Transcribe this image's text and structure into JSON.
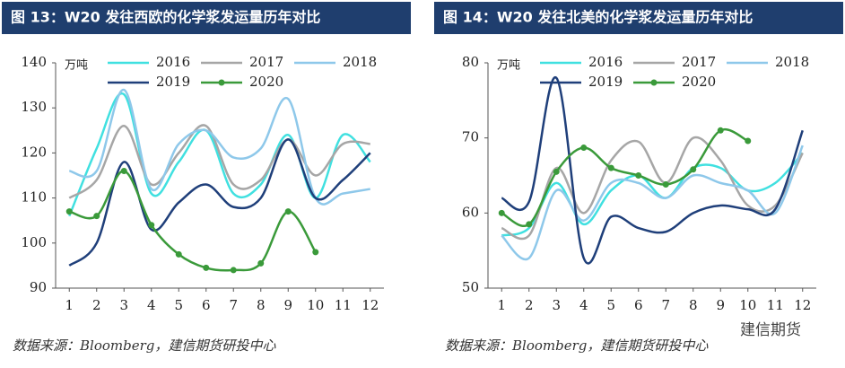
{
  "chart_data": [
    {
      "type": "line",
      "title": "图 13：W20 发往西欧的化学浆发运量历年对比",
      "y_label": "万吨",
      "categories": [
        "1",
        "2",
        "3",
        "4",
        "5",
        "6",
        "7",
        "8",
        "9",
        "10",
        "11",
        "12"
      ],
      "series": [
        {
          "name": "2016",
          "color": "#40e0e0",
          "values": [
            106,
            121,
            133,
            111,
            118,
            125,
            111,
            113,
            124,
            110,
            124,
            118
          ]
        },
        {
          "name": "2017",
          "color": "#a6a6a6",
          "values": [
            110,
            114,
            126,
            113,
            120,
            126,
            113,
            114,
            123,
            115,
            122,
            122
          ]
        },
        {
          "name": "2018",
          "color": "#8ec8ea",
          "values": [
            116,
            116,
            134,
            112,
            122,
            125,
            119,
            121,
            132,
            110,
            111,
            112
          ]
        },
        {
          "name": "2019",
          "color": "#1f3f7a",
          "values": [
            95,
            100,
            118,
            103,
            109,
            113,
            108,
            110,
            123,
            110,
            114,
            120
          ]
        },
        {
          "name": "2020",
          "color": "#3a9a3a",
          "markers": true,
          "values": [
            107,
            106,
            116,
            104,
            97.5,
            94.5,
            94,
            95.5,
            107,
            98,
            null,
            null
          ]
        }
      ],
      "ylim": [
        90,
        140
      ],
      "yticks": [
        90,
        100,
        110,
        120,
        130,
        140
      ],
      "note": "数据来源：Bloomberg，建信期货研投中心"
    },
    {
      "type": "line",
      "title": "图 14：W20 发往北美的化学浆发运量历年对比",
      "y_label": "万吨",
      "categories": [
        "1",
        "2",
        "3",
        "4",
        "5",
        "6",
        "7",
        "8",
        "9",
        "10",
        "11",
        "12"
      ],
      "series": [
        {
          "name": "2016",
          "color": "#40e0e0",
          "values": [
            57,
            58,
            64,
            58.5,
            63,
            65,
            62,
            66,
            66,
            63,
            64,
            68
          ]
        },
        {
          "name": "2017",
          "color": "#a6a6a6",
          "values": [
            58,
            57,
            66,
            60,
            67,
            69.5,
            64,
            70,
            67,
            61,
            61,
            68
          ]
        },
        {
          "name": "2018",
          "color": "#8ec8ea",
          "values": [
            57,
            54,
            63,
            59,
            64,
            64,
            62,
            65,
            64,
            63,
            60,
            69
          ]
        },
        {
          "name": "2019",
          "color": "#1f3f7a",
          "values": [
            62,
            61.5,
            78,
            54,
            59.5,
            58,
            57.5,
            60,
            61,
            60.5,
            60.5,
            71
          ]
        },
        {
          "name": "2020",
          "color": "#3a9a3a",
          "markers": true,
          "values": [
            60,
            58.5,
            65.5,
            68.7,
            66,
            65,
            63.8,
            65.8,
            71,
            69.6,
            null,
            null
          ]
        }
      ],
      "ylim": [
        50,
        80
      ],
      "yticks": [
        50,
        60,
        70,
        80
      ],
      "note": "数据来源：Bloomberg，建信期货研投中心"
    }
  ],
  "watermark": "建信期货"
}
